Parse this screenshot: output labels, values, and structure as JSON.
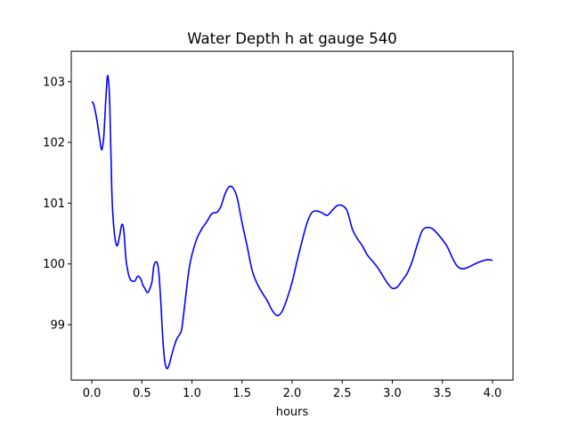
{
  "chart_data": {
    "type": "line",
    "title": "Water Depth h at gauge 540",
    "xlabel": "hours",
    "ylabel": "",
    "xlim": [
      -0.205,
      4.205
    ],
    "ylim": [
      98.09,
      103.5
    ],
    "xticks": [
      0.0,
      0.5,
      1.0,
      1.5,
      2.0,
      2.5,
      3.0,
      3.5,
      4.0
    ],
    "xtick_labels": [
      "0.0",
      "0.5",
      "1.0",
      "1.5",
      "2.0",
      "2.5",
      "3.0",
      "3.5",
      "4.0"
    ],
    "yticks": [
      99,
      100,
      101,
      102,
      103
    ],
    "ytick_labels": [
      "99",
      "100",
      "101",
      "102",
      "103"
    ],
    "grid": false,
    "colors": {
      "line": "#0000ff",
      "axes": "#000000",
      "background": "#ffffff"
    },
    "series": [
      {
        "name": "",
        "x": [
          0.0,
          0.02,
          0.05,
          0.08,
          0.1,
          0.12,
          0.14,
          0.16,
          0.18,
          0.2,
          0.22,
          0.25,
          0.28,
          0.3,
          0.32,
          0.34,
          0.36,
          0.38,
          0.4,
          0.43,
          0.46,
          0.49,
          0.51,
          0.53,
          0.56,
          0.6,
          0.62,
          0.65,
          0.67,
          0.69,
          0.71,
          0.73,
          0.75,
          0.77,
          0.79,
          0.82,
          0.85,
          0.88,
          0.9,
          0.94,
          0.97,
          1.0,
          1.05,
          1.1,
          1.15,
          1.2,
          1.25,
          1.29,
          1.33,
          1.37,
          1.41,
          1.45,
          1.48,
          1.51,
          1.55,
          1.6,
          1.65,
          1.7,
          1.75,
          1.8,
          1.85,
          1.9,
          1.95,
          2.0,
          2.05,
          2.1,
          2.15,
          2.2,
          2.25,
          2.3,
          2.35,
          2.4,
          2.45,
          2.5,
          2.55,
          2.6,
          2.65,
          2.7,
          2.75,
          2.8,
          2.85,
          2.9,
          2.95,
          3.0,
          3.05,
          3.1,
          3.15,
          3.2,
          3.25,
          3.3,
          3.35,
          3.4,
          3.45,
          3.5,
          3.55,
          3.6,
          3.65,
          3.7,
          3.75,
          3.8,
          3.85,
          3.9,
          3.95,
          4.0
        ],
        "y": [
          102.67,
          102.62,
          102.38,
          102.05,
          101.88,
          102.1,
          102.7,
          103.1,
          102.6,
          101.2,
          100.6,
          100.3,
          100.48,
          100.65,
          100.55,
          100.1,
          99.88,
          99.76,
          99.72,
          99.72,
          99.8,
          99.75,
          99.65,
          99.6,
          99.53,
          99.7,
          99.97,
          100.03,
          99.85,
          99.35,
          98.75,
          98.38,
          98.28,
          98.33,
          98.45,
          98.63,
          98.77,
          98.85,
          98.95,
          99.5,
          99.9,
          100.15,
          100.42,
          100.58,
          100.7,
          100.83,
          100.85,
          100.95,
          101.15,
          101.27,
          101.25,
          101.1,
          100.85,
          100.6,
          100.3,
          99.9,
          99.68,
          99.53,
          99.4,
          99.24,
          99.15,
          99.22,
          99.43,
          99.7,
          100.05,
          100.38,
          100.68,
          100.85,
          100.87,
          100.84,
          100.8,
          100.88,
          100.96,
          100.96,
          100.87,
          100.58,
          100.42,
          100.3,
          100.15,
          100.05,
          99.95,
          99.82,
          99.69,
          99.6,
          99.62,
          99.73,
          99.85,
          100.05,
          100.32,
          100.55,
          100.6,
          100.58,
          100.5,
          100.4,
          100.28,
          100.1,
          99.96,
          99.92,
          99.94,
          99.98,
          100.02,
          100.05,
          100.07,
          100.06
        ]
      }
    ]
  }
}
